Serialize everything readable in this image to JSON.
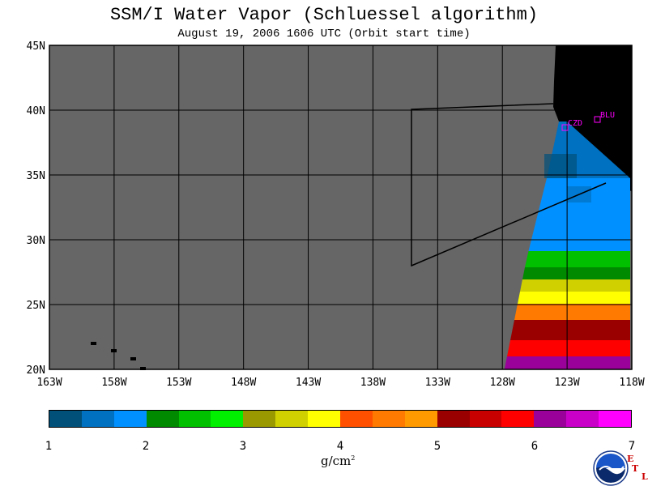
{
  "title": "SSM/I Water Vapor (Schluessel algorithm)",
  "subtitle": "August 19, 2006  1606 UTC  (Orbit start time)",
  "map": {
    "lat_labels": [
      "45N",
      "40N",
      "35N",
      "30N",
      "25N",
      "20N"
    ],
    "lon_labels": [
      "163W",
      "158W",
      "153W",
      "148W",
      "143W",
      "138W",
      "133W",
      "128W",
      "123W",
      "118W"
    ],
    "stations": [
      {
        "id": "CZD",
        "label": "CZD"
      },
      {
        "id": "BLU",
        "label": "BLU"
      }
    ],
    "no_data_color": "#666666",
    "land_color": "#000000",
    "station_color": "#ff00ff"
  },
  "colorbar": {
    "colors": [
      "#00507a",
      "#0070c0",
      "#0090ff",
      "#008a00",
      "#00c000",
      "#00f000",
      "#9a9a00",
      "#d0d000",
      "#ffff00",
      "#ff5000",
      "#ff7a00",
      "#ff9a00",
      "#9a0000",
      "#c80000",
      "#ff0000",
      "#9a009a",
      "#c800c8",
      "#ff00ff"
    ],
    "tick_labels": [
      "1",
      "2",
      "3",
      "4",
      "5",
      "6",
      "7"
    ],
    "units": "g/cm",
    "units_sup": "2"
  },
  "logo": {
    "text": "NOAA",
    "side": "ETL",
    "letters": [
      "E",
      "T",
      "L"
    ]
  }
}
